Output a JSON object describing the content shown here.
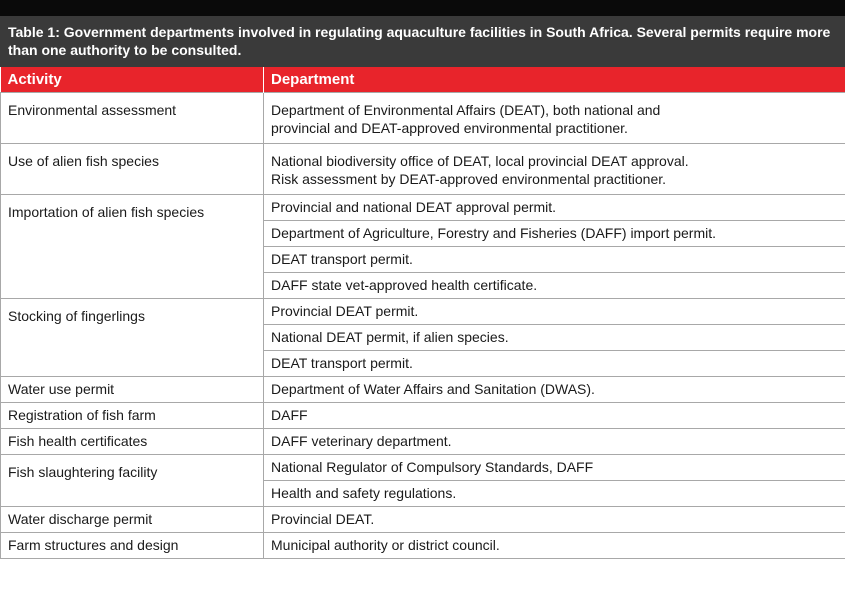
{
  "caption": "Table 1: Government departments involved in regulating aquaculture facilities in South Africa. Several permits require more than one authority to be consulted.",
  "header": {
    "activity": "Activity",
    "department": "Department"
  },
  "rows": [
    {
      "activity": "Environmental assessment",
      "departments": [
        "Department of Environmental Affairs (DEAT), both national and\nprovincial and DEAT-approved environmental practitioner."
      ]
    },
    {
      "activity": "Use of alien fish species",
      "departments": [
        "National biodiversity office of DEAT, local provincial DEAT approval.\nRisk assessment by DEAT-approved environmental practitioner."
      ]
    },
    {
      "activity": "Importation of alien fish species",
      "departments": [
        "Provincial and national DEAT approval permit.",
        "Department of Agriculture, Forestry and Fisheries (DAFF) import permit.",
        "DEAT transport permit.",
        "DAFF state vet-approved health certificate."
      ]
    },
    {
      "activity": "Stocking of fingerlings",
      "departments": [
        "Provincial DEAT permit.",
        "National DEAT permit, if alien species.",
        "DEAT transport permit."
      ]
    },
    {
      "activity": "Water use permit",
      "departments": [
        "Department of Water Affairs and Sanitation (DWAS)."
      ]
    },
    {
      "activity": "Registration of fish farm",
      "departments": [
        "DAFF"
      ]
    },
    {
      "activity": "Fish health certificates",
      "departments": [
        "DAFF veterinary department."
      ]
    },
    {
      "activity": "Fish slaughtering facility",
      "departments": [
        "National Regulator of Compulsory Standards, DAFF",
        "Health and safety regulations."
      ]
    },
    {
      "activity": "Water discharge permit",
      "departments": [
        "Provincial DEAT."
      ]
    },
    {
      "activity": "Farm structures and design",
      "departments": [
        "Municipal authority or district council."
      ]
    }
  ],
  "colors": {
    "header_bg": "#e8242b",
    "caption_bg": "#3a3a3a",
    "topbar_bg": "#0a0a0a",
    "grid": "#a8a8a8"
  }
}
